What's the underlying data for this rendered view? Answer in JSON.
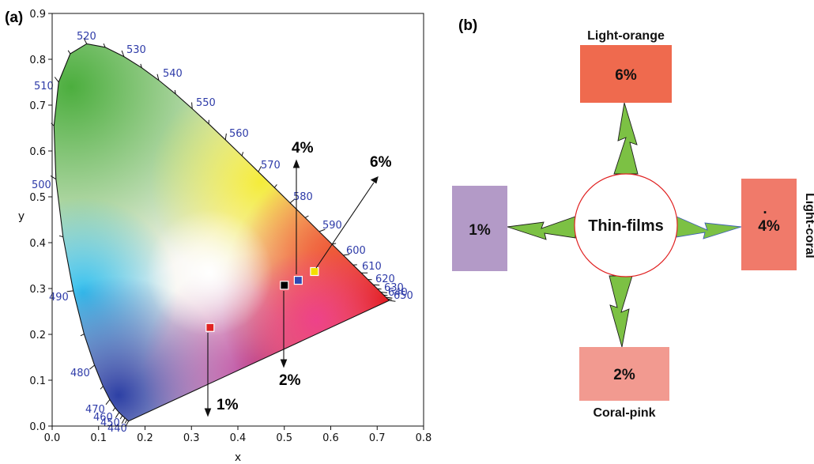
{
  "panel_a": {
    "label": "(a)",
    "x_axis_title": "x",
    "y_axis_title": "y",
    "x_ticks": [
      "0.0",
      "0.1",
      "0.2",
      "0.3",
      "0.4",
      "0.5",
      "0.6",
      "0.7",
      "0.8"
    ],
    "y_ticks": [
      "0.0",
      "0.1",
      "0.2",
      "0.3",
      "0.4",
      "0.5",
      "0.6",
      "0.7",
      "0.8",
      "0.9"
    ],
    "wavelength_labels": [
      "440",
      "450",
      "460",
      "470",
      "480",
      "490",
      "500",
      "510",
      "520",
      "530",
      "540",
      "550",
      "560",
      "570",
      "580",
      "590",
      "600",
      "610",
      "620",
      "630",
      "640",
      "650"
    ],
    "points": [
      {
        "label": "1%",
        "x": 0.34,
        "y": 0.215,
        "color": "#e02424"
      },
      {
        "label": "2%",
        "x": 0.5,
        "y": 0.307,
        "color": "#000000"
      },
      {
        "label": "4%",
        "x": 0.53,
        "y": 0.318,
        "color": "#2f49b3"
      },
      {
        "label": "6%",
        "x": 0.565,
        "y": 0.337,
        "color": "#f4e000"
      }
    ]
  },
  "panel_b": {
    "label": "(b)",
    "center": "Thin-films",
    "boxes": [
      {
        "key": "top",
        "value": "6%",
        "name": "Light-orange",
        "color": "#ef6a4e"
      },
      {
        "key": "left",
        "value": "1%",
        "name": "",
        "color": "#b39ac7"
      },
      {
        "key": "right",
        "value": "4%",
        "name": "Light-coral",
        "color": "#f07a6a"
      },
      {
        "key": "bottom",
        "value": "2%",
        "name": "Coral-pink",
        "color": "#f29a90"
      }
    ],
    "right_dot": "."
  }
}
